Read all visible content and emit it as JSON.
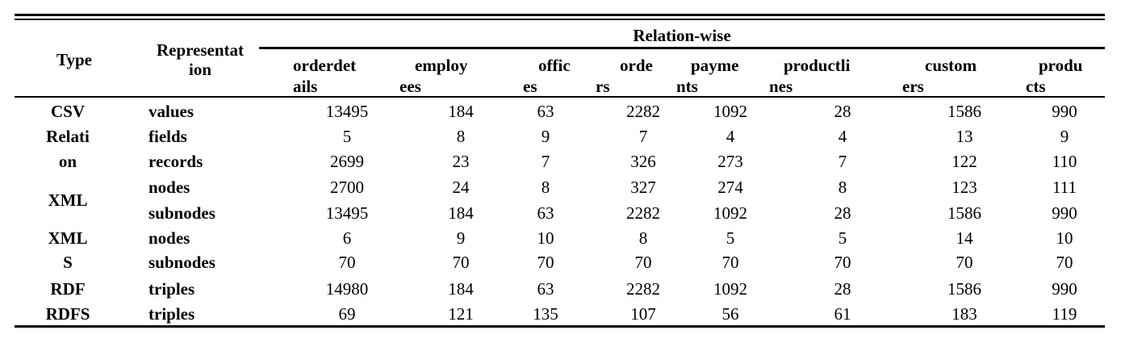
{
  "table": {
    "head": {
      "type": "Type",
      "representation": "Representat\nion",
      "relation_wise": "Relation-wise",
      "columns": [
        {
          "line1": "orderdet",
          "line2": "ails"
        },
        {
          "line1": "employ",
          "line2": "ees"
        },
        {
          "line1": "offic",
          "line2": "es"
        },
        {
          "line1": "orde",
          "line2": "rs"
        },
        {
          "line1": "payme",
          "line2": "nts"
        },
        {
          "line1": "productli",
          "line2": "nes"
        },
        {
          "line1": "custom",
          "line2": "ers"
        },
        {
          "line1": "produ",
          "line2": "cts"
        }
      ]
    },
    "type_labels": {
      "csv": "CSV",
      "relation_1": "Relati",
      "relation_2": "on",
      "xml": "XML",
      "xmls_1": "XML",
      "xmls_2": "S",
      "rdf": "RDF",
      "rdfs": "RDFS"
    },
    "rows": [
      {
        "rep": "values",
        "cells": [
          "13495",
          "184",
          "63",
          "2282",
          "1092",
          "28",
          "1586",
          "990"
        ]
      },
      {
        "rep": "fields",
        "cells": [
          "5",
          "8",
          "9",
          "7",
          "4",
          "4",
          "13",
          "9"
        ]
      },
      {
        "rep": "records",
        "cells": [
          "2699",
          "23",
          "7",
          "326",
          "273",
          "7",
          "122",
          "110"
        ]
      },
      {
        "rep": "nodes",
        "cells": [
          "2700",
          "24",
          "8",
          "327",
          "274",
          "8",
          "123",
          "111"
        ]
      },
      {
        "rep": "subnodes",
        "cells": [
          "13495",
          "184",
          "63",
          "2282",
          "1092",
          "28",
          "1586",
          "990"
        ]
      },
      {
        "rep": "nodes",
        "cells": [
          "6",
          "9",
          "10",
          "8",
          "5",
          "5",
          "14",
          "10"
        ]
      },
      {
        "rep": "subnodes",
        "cells": [
          "70",
          "70",
          "70",
          "70",
          "70",
          "70",
          "70",
          "70"
        ]
      },
      {
        "rep": "triples",
        "cells": [
          "14980",
          "184",
          "63",
          "2282",
          "1092",
          "28",
          "1586",
          "990"
        ]
      },
      {
        "rep": "triples",
        "cells": [
          "69",
          "121",
          "135",
          "107",
          "56",
          "61",
          "183",
          "119"
        ]
      }
    ]
  }
}
